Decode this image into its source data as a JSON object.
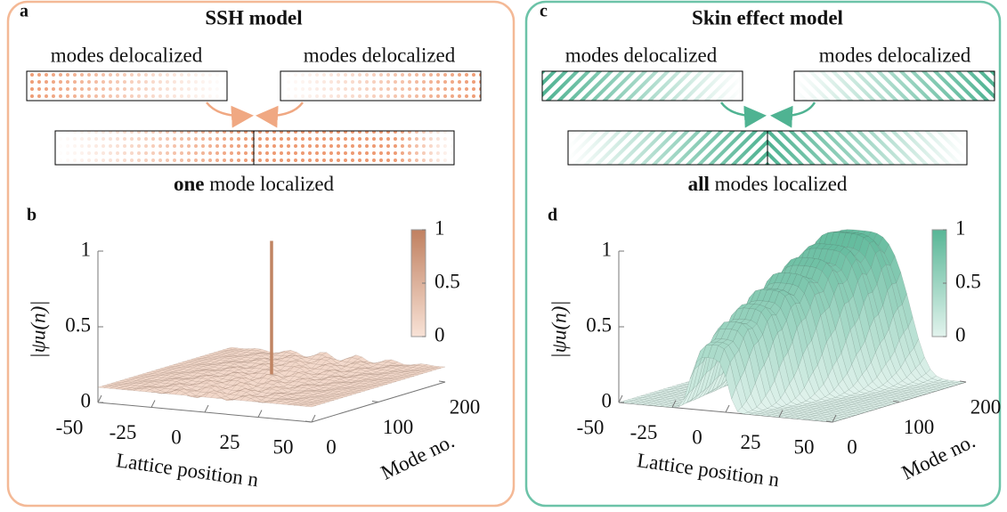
{
  "panels": [
    {
      "letter": "a",
      "title": "SSH model",
      "left_label": "modes delocalized",
      "right_label": "modes delocalized",
      "bottom_bold": "one",
      "bottom_rest": "mode localized"
    },
    {
      "letter": "c",
      "title": "Skin effect model",
      "left_label": "modes delocalized",
      "right_label": "modes delocalized",
      "bottom_bold": "all",
      "bottom_rest": "modes localized"
    }
  ],
  "plots": [
    {
      "letter": "b",
      "zlabel": "|ψu(n)|",
      "zticks": [
        0,
        0.5,
        1
      ],
      "xlabel": "Lattice position n",
      "xticks": [
        -50,
        -25,
        0,
        25,
        50
      ],
      "ylabel": "Mode no.",
      "yticks": [
        0,
        100,
        200
      ],
      "colorbar_ticks": [
        0,
        0.5,
        1
      ]
    },
    {
      "letter": "d",
      "zlabel": "|ψu(n)|",
      "zticks": [
        0,
        0.5,
        1
      ],
      "xlabel": "Lattice position n",
      "xticks": [
        -50,
        -25,
        0,
        25,
        50
      ],
      "ylabel": "Mode no.",
      "yticks": [
        0,
        100,
        200
      ],
      "colorbar_ticks": [
        0,
        0.5,
        1
      ]
    }
  ]
}
